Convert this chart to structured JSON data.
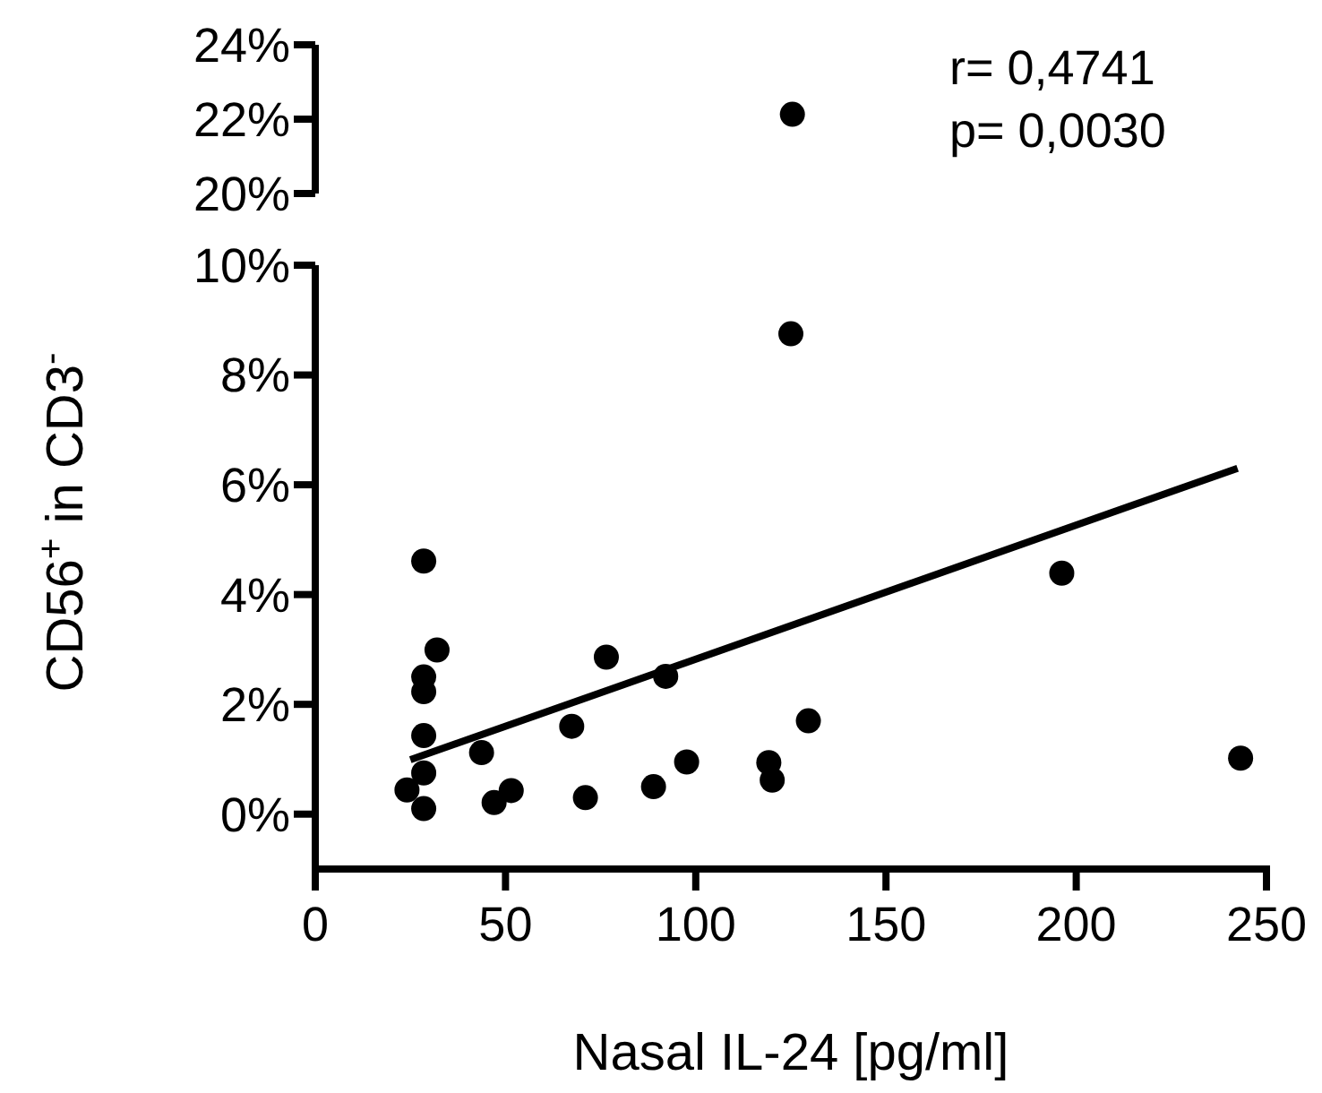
{
  "chart_data": [
    {
      "type": "scatter",
      "xlim": [
        0,
        250
      ],
      "ylim": [
        20,
        24
      ],
      "yticks": [
        {
          "value": 20,
          "label": "20%"
        },
        {
          "value": 22,
          "label": "22%"
        },
        {
          "value": 24,
          "label": "24%"
        }
      ],
      "tick_labels": "y",
      "marker": "circle",
      "annotations": [
        "r= 0,4741",
        "p= 0,0030"
      ],
      "series": [
        {
          "color": "#000000",
          "x": [
            125.4
          ],
          "values": [
            22.13
          ]
        }
      ]
    },
    {
      "type": "scatter",
      "xlabel": "Nasal IL-24 [pg/ml]",
      "ylabel": "CD56$^{+}$ in CD3$^{-}$",
      "xlim": [
        0,
        250
      ],
      "xticks": [
        0,
        50,
        100,
        150,
        200,
        250
      ],
      "ylim": [
        -1,
        10
      ],
      "yticks": [
        {
          "value": 0,
          "label": "0%"
        },
        {
          "value": 2,
          "label": "2%"
        },
        {
          "value": 4,
          "label": "4%"
        },
        {
          "value": 6,
          "label": "6%"
        },
        {
          "value": 8,
          "label": "8%"
        },
        {
          "value": 10,
          "label": "10%"
        }
      ],
      "marker": "circle",
      "series": [
        {
          "color": "#000000",
          "x": [
            28.5,
            32,
            28.5,
            28.5,
            28.5,
            28.5,
            28.5,
            24.1,
            43.7,
            67.4,
            76.5,
            92.1,
            47,
            51.5,
            71,
            88.9,
            97.6,
            125,
            196.2,
            129.6,
            119.2,
            120.1,
            243.2
          ],
          "values": [
            4.61,
            2.99,
            2.5,
            2.23,
            1.43,
            0.75,
            0.1,
            0.44,
            1.12,
            1.6,
            2.86,
            2.51,
            0.21,
            0.43,
            0.3,
            0.5,
            0.95,
            8.75,
            4.39,
            1.7,
            0.94,
            0.62,
            1.02
          ]
        },
        {
          "type": "line",
          "color": "#000000",
          "marker": "none",
          "x": [
            25,
            242.4
          ],
          "values": [
            0.99,
            6.3
          ]
        }
      ]
    }
  ]
}
